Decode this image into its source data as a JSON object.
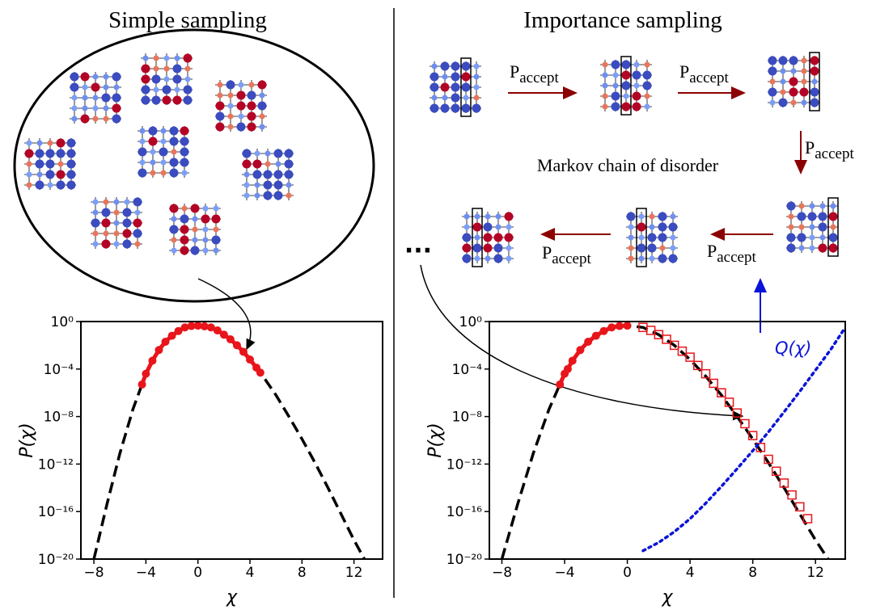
{
  "panels": [
    {
      "title": "Simple sampling"
    },
    {
      "title": "Importance sampling",
      "chain_label": "Markov chain of disorder",
      "ellipsis": "···",
      "transitions": [
        {
          "symbol": "P",
          "subscript": "accept"
        },
        {
          "symbol": "P",
          "subscript": "accept"
        },
        {
          "symbol": "P",
          "subscript": "accept"
        },
        {
          "symbol": "P",
          "subscript": "accept"
        },
        {
          "symbol": "P",
          "subscript": "accept"
        }
      ]
    }
  ],
  "chart_data": [
    {
      "type": "line",
      "xlabel": "χ",
      "ylabel": "P(χ)",
      "yscale": "log",
      "xlim": [
        -9,
        14.2
      ],
      "ylim": [
        1e-20,
        1
      ],
      "xticks": [
        {
          "value": -8,
          "label": "−8"
        },
        {
          "value": -4,
          "label": "−4"
        },
        0,
        4,
        8,
        12
      ],
      "yticks": [
        {
          "value": 1,
          "label": "10⁰"
        },
        {
          "value": 0.0001,
          "label": "10⁻⁴"
        },
        {
          "value": 1e-08,
          "label": "10⁻⁸"
        },
        {
          "value": 1e-12,
          "label": "10⁻¹²"
        },
        {
          "value": 1e-16,
          "label": "10⁻¹⁶"
        },
        {
          "value": 1e-20,
          "label": "10⁻²⁰"
        }
      ],
      "series": [
        {
          "color": "#000000",
          "style": "dashed",
          "x": [
            -8,
            -7,
            -6,
            -5,
            -4,
            -3,
            -2,
            -1,
            0,
            1,
            2,
            3,
            4,
            5,
            6,
            7,
            8,
            9,
            10,
            11,
            12,
            12.8
          ],
          "values": [
            1e-20,
            4e-16,
            7.9e-12,
            4e-08,
            4e-05,
            0.004,
            0.063,
            0.32,
            0.45,
            0.32,
            0.079,
            0.01,
            0.00063,
            2.5e-05,
            6.3e-07,
            1e-08,
            1.3e-10,
            1.3e-12,
            1e-14,
            6.3e-17,
            4e-19,
            1e-20
          ]
        },
        {
          "color": "#e8151b",
          "style": "solid",
          "marker": "circle",
          "x": [
            -4.3,
            -4,
            -3.5,
            -3,
            -2.5,
            -2,
            -1.5,
            -1,
            -0.5,
            0,
            0.5,
            1,
            1.5,
            2,
            2.5,
            3,
            3.5,
            4,
            4.5,
            4.8
          ],
          "values": [
            5e-06,
            4e-05,
            0.0005,
            0.004,
            0.02,
            0.063,
            0.16,
            0.32,
            0.42,
            0.45,
            0.4,
            0.32,
            0.18,
            0.079,
            0.032,
            0.01,
            0.0028,
            0.00063,
            0.00013,
            5e-05
          ]
        }
      ]
    },
    {
      "type": "line",
      "xlabel": "χ",
      "ylabel": "P(χ)",
      "yscale": "log",
      "xlim": [
        -8.8,
        13.9
      ],
      "ylim": [
        1e-20,
        1
      ],
      "xticks": [
        {
          "value": -8,
          "label": "−8"
        },
        {
          "value": -4,
          "label": "−4"
        },
        0,
        4,
        8,
        12
      ],
      "yticks": [
        {
          "value": 1,
          "label": "10⁰"
        },
        {
          "value": 0.0001,
          "label": "10⁻⁴"
        },
        {
          "value": 1e-08,
          "label": "10⁻⁸"
        },
        {
          "value": 1e-12,
          "label": "10⁻¹²"
        },
        {
          "value": 1e-16,
          "label": "10⁻¹⁶"
        },
        {
          "value": 1e-20,
          "label": "10⁻²⁰"
        }
      ],
      "series": [
        {
          "color": "#000000",
          "style": "dashed",
          "x": [
            -8,
            -7,
            -6,
            -5,
            -4,
            -3,
            -2,
            -1,
            0,
            1,
            2,
            3,
            4,
            5,
            6,
            7,
            8,
            9,
            10,
            11,
            12,
            12.8
          ],
          "values": [
            1e-20,
            4e-16,
            7.9e-12,
            4e-08,
            4e-05,
            0.004,
            0.063,
            0.32,
            0.45,
            0.32,
            0.079,
            0.01,
            0.00063,
            2.5e-05,
            6.3e-07,
            1e-08,
            1.3e-10,
            1.3e-12,
            1e-14,
            6.3e-17,
            4e-19,
            1e-20
          ]
        },
        {
          "color": "#e8151b",
          "style": "solid",
          "marker": "circle",
          "x": [
            -4.3,
            -4,
            -3.8,
            -3.5,
            -3,
            -2.5,
            -2,
            -1.5,
            -1,
            -0.5,
            0
          ],
          "values": [
            5e-06,
            4e-05,
            0.0001,
            0.0005,
            0.004,
            0.02,
            0.063,
            0.16,
            0.32,
            0.42,
            0.45
          ]
        },
        {
          "color": "#e8151b",
          "marker": "square",
          "x": [
            1,
            1.5,
            2,
            2.5,
            3,
            3.5,
            4,
            4.5,
            5,
            5.5,
            6,
            6.5,
            7,
            7.5,
            8,
            8.5,
            9,
            9.5,
            10,
            10.5,
            11,
            11.5
          ],
          "values": [
            0.32,
            0.18,
            0.079,
            0.032,
            0.01,
            0.0032,
            0.001,
            0.0002,
            4e-05,
            6.3e-06,
            1e-06,
            1.6e-07,
            2e-08,
            2.5e-09,
            2.5e-10,
            2.5e-11,
            2.5e-12,
            2.5e-13,
            2.5e-14,
            2.5e-15,
            2.5e-16,
            2.5e-17
          ]
        },
        {
          "name": "Q(χ)",
          "color": "#0a14d8",
          "style": "dotted",
          "x": [
            1,
            2,
            3,
            4,
            5,
            6,
            7,
            8,
            9,
            10,
            11,
            12,
            13,
            13.9
          ],
          "values": [
            5e-20,
            2.5e-19,
            2e-18,
            2.5e-17,
            5e-16,
            1.3e-14,
            4e-13,
            1.3e-11,
            5e-10,
            2.5e-08,
            1.3e-06,
            8e-05,
            0.005,
            0.32
          ]
        }
      ]
    }
  ]
}
